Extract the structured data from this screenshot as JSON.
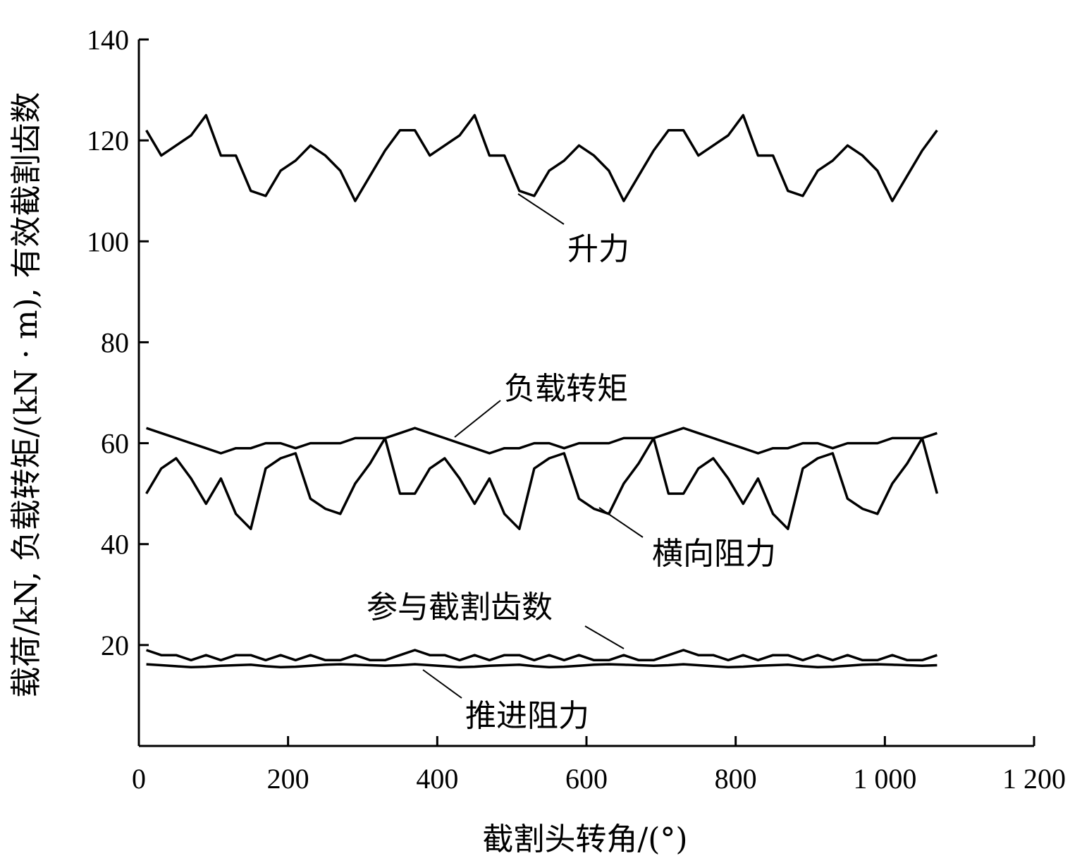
{
  "chart_data": {
    "type": "line",
    "title": "",
    "xlabel": "截割头转角/(°)",
    "ylabel": "载荷/kN, 负载转矩/(kN · m), 有效截割齿数",
    "xlim": [
      0,
      1200
    ],
    "ylim": [
      0,
      140
    ],
    "xticks": [
      0,
      200,
      400,
      600,
      800,
      1000,
      1200
    ],
    "xtick_labels": [
      "0",
      "200",
      "400",
      "600",
      "800",
      "1 000",
      "1 200"
    ],
    "yticks": [
      20,
      40,
      60,
      80,
      100,
      120,
      140
    ],
    "ytick_labels": [
      "20",
      "40",
      "60",
      "80",
      "100",
      "120",
      "140"
    ],
    "grid": false,
    "x": [
      10,
      30,
      50,
      70,
      90,
      110,
      130,
      150,
      170,
      190,
      210,
      230,
      250,
      270,
      290,
      310,
      330,
      350,
      370,
      390,
      410,
      430,
      450,
      470,
      490,
      510,
      530,
      550,
      570,
      590,
      610,
      630,
      650,
      670,
      690,
      710,
      730,
      750,
      770,
      790,
      810,
      830,
      850,
      870,
      890,
      910,
      930,
      950,
      970,
      990,
      1010,
      1030,
      1050,
      1070
    ],
    "series": [
      {
        "name": "升力",
        "values": [
          122,
          117,
          119,
          121,
          125,
          117,
          117,
          110,
          109,
          114,
          116,
          119,
          117,
          114,
          108,
          113,
          118,
          122,
          122,
          117,
          119,
          121,
          125,
          117,
          117,
          110,
          109,
          114,
          116,
          119,
          117,
          114,
          108,
          113,
          118,
          122,
          122,
          117,
          119,
          121,
          125,
          117,
          117,
          110,
          109,
          114,
          116,
          119,
          117,
          114,
          108,
          113,
          118,
          122
        ]
      },
      {
        "name": "负载转矩",
        "values": [
          63,
          62,
          61,
          60,
          59,
          58,
          59,
          59,
          60,
          60,
          59,
          60,
          60,
          60,
          61,
          61,
          61,
          62,
          63,
          62,
          61,
          60,
          59,
          58,
          59,
          59,
          60,
          60,
          59,
          60,
          60,
          60,
          61,
          61,
          61,
          62,
          63,
          62,
          61,
          60,
          59,
          58,
          59,
          59,
          60,
          60,
          59,
          60,
          60,
          60,
          61,
          61,
          61,
          62
        ]
      },
      {
        "name": "横向阻力",
        "values": [
          50,
          55,
          57,
          53,
          48,
          53,
          46,
          43,
          55,
          57,
          58,
          49,
          47,
          46,
          52,
          56,
          61,
          50,
          50,
          55,
          57,
          53,
          48,
          53,
          46,
          43,
          55,
          57,
          58,
          49,
          47,
          46,
          52,
          56,
          61,
          50,
          50,
          55,
          57,
          53,
          48,
          53,
          46,
          43,
          55,
          57,
          58,
          49,
          47,
          46,
          52,
          56,
          61,
          50
        ]
      },
      {
        "name": "参与截割齿数",
        "values": [
          19,
          18,
          18,
          17,
          18,
          17,
          18,
          18,
          17,
          18,
          17,
          18,
          17,
          17,
          18,
          17,
          17,
          18,
          19,
          18,
          18,
          17,
          18,
          17,
          18,
          18,
          17,
          18,
          17,
          18,
          17,
          17,
          18,
          17,
          17,
          18,
          19,
          18,
          18,
          17,
          18,
          17,
          18,
          18,
          17,
          18,
          17,
          18,
          17,
          17,
          18,
          17,
          17,
          18
        ]
      },
      {
        "name": "推进阻力",
        "values": [
          16.2,
          16,
          15.8,
          15.6,
          15.7,
          15.9,
          16,
          16.1,
          15.8,
          15.6,
          15.7,
          15.9,
          16.1,
          16.2,
          16.1,
          16,
          15.9,
          16,
          16.2,
          16,
          15.8,
          15.6,
          15.7,
          15.9,
          16,
          16.1,
          15.8,
          15.6,
          15.7,
          15.9,
          16.1,
          16.2,
          16.1,
          16,
          15.9,
          16,
          16.2,
          16,
          15.8,
          15.6,
          15.7,
          15.9,
          16,
          16.1,
          15.8,
          15.6,
          15.7,
          15.9,
          16.1,
          16.2,
          16.1,
          16,
          15.9,
          16
        ]
      }
    ],
    "annotations": [
      "升力",
      "负载转矩",
      "横向阻力",
      "参与截割齿数",
      "推进阻力"
    ],
    "line_color": "#000000"
  }
}
